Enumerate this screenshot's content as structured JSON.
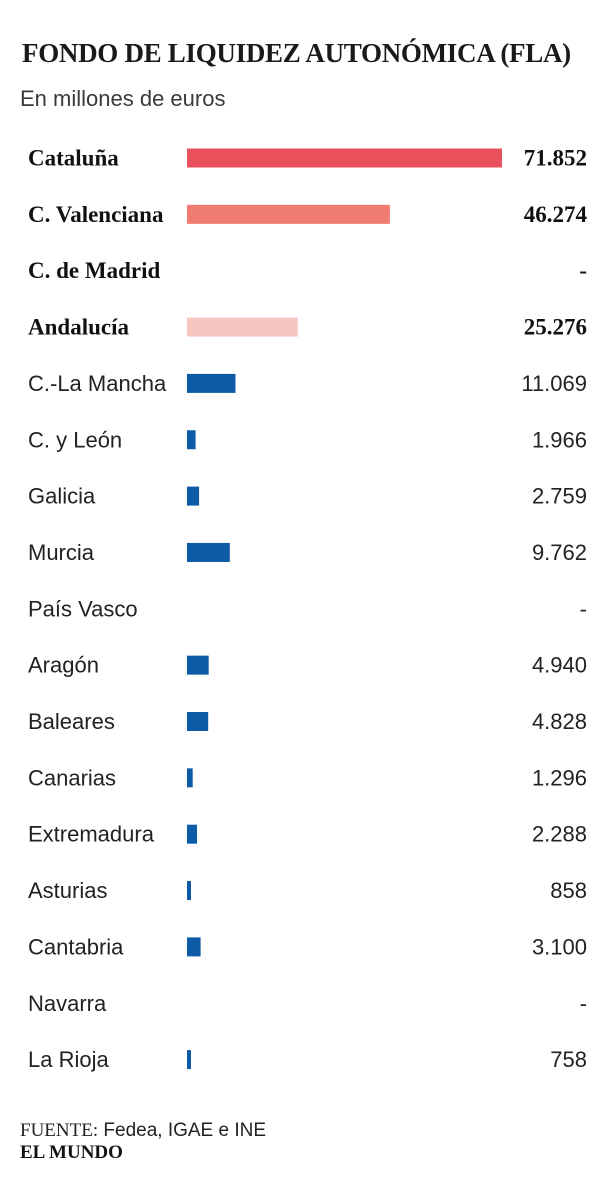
{
  "chart_data": {
    "type": "bar",
    "orientation": "horizontal",
    "title": "FONDO DE LIQUIDEZ AUTONÓMICA (FLA)",
    "subtitle": "En millones de euros",
    "xlim": [
      0,
      71852
    ],
    "rows": [
      {
        "label": "Cataluña",
        "value": 71852,
        "display": "71.852",
        "highlight": true,
        "color": "#e8505b"
      },
      {
        "label": "C. Valenciana",
        "value": 46274,
        "display": "46.274",
        "highlight": true,
        "color": "#ef7b72"
      },
      {
        "label": "C. de Madrid",
        "value": 0,
        "display": "-",
        "highlight": true,
        "color": "#e8505b"
      },
      {
        "label": "Andalucía",
        "value": 25276,
        "display": "25.276",
        "highlight": true,
        "color": "#f6c7c0"
      },
      {
        "label": "C.-La Mancha",
        "value": 11069,
        "display": "11.069",
        "highlight": false,
        "color": "#0d5aa7"
      },
      {
        "label": "C. y León",
        "value": 1966,
        "display": "1.966",
        "highlight": false,
        "color": "#0d5aa7"
      },
      {
        "label": "Galicia",
        "value": 2759,
        "display": "2.759",
        "highlight": false,
        "color": "#0d5aa7"
      },
      {
        "label": "Murcia",
        "value": 9762,
        "display": "9.762",
        "highlight": false,
        "color": "#0d5aa7"
      },
      {
        "label": "País Vasco",
        "value": 0,
        "display": "-",
        "highlight": false,
        "color": "#0d5aa7"
      },
      {
        "label": "Aragón",
        "value": 4940,
        "display": "4.940",
        "highlight": false,
        "color": "#0d5aa7"
      },
      {
        "label": "Baleares",
        "value": 4828,
        "display": "4.828",
        "highlight": false,
        "color": "#0d5aa7"
      },
      {
        "label": "Canarias",
        "value": 1296,
        "display": "1.296",
        "highlight": false,
        "color": "#0d5aa7"
      },
      {
        "label": "Extremadura",
        "value": 2288,
        "display": "2.288",
        "highlight": false,
        "color": "#0d5aa7"
      },
      {
        "label": "Asturias",
        "value": 858,
        "display": "858",
        "highlight": false,
        "color": "#0d5aa7"
      },
      {
        "label": "Cantabria",
        "value": 3100,
        "display": "3.100",
        "highlight": false,
        "color": "#0d5aa7"
      },
      {
        "label": "Navarra",
        "value": 0,
        "display": "-",
        "highlight": false,
        "color": "#0d5aa7"
      },
      {
        "label": "La Rioja",
        "value": 758,
        "display": "758",
        "highlight": false,
        "color": "#0d5aa7"
      }
    ]
  },
  "footer": {
    "source_label": "FUENTE:",
    "source_text": "Fedea, IGAE e INE",
    "brand": "EL MUNDO"
  }
}
